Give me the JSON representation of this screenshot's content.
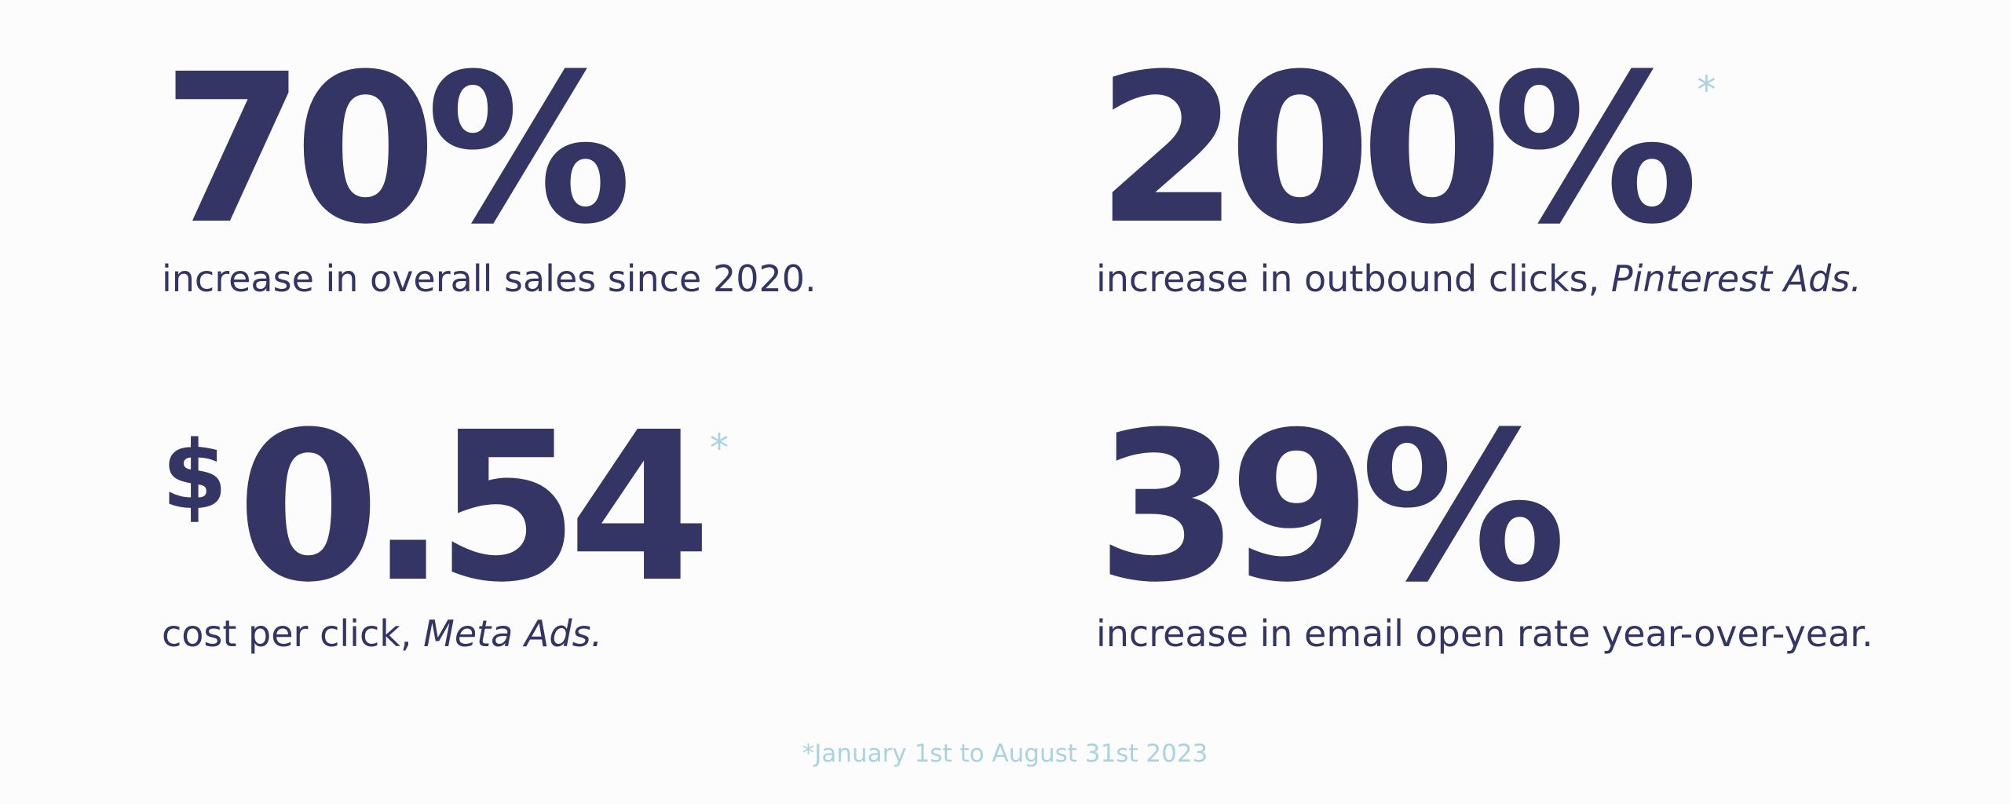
{
  "stats": [
    {
      "number": "70%",
      "description": "increase in overall sales since 2020."
    },
    {
      "number": "200%",
      "marker": "*",
      "description": "increase in outbound clicks, ",
      "description_italic": "Pinterest Ads."
    },
    {
      "prefix": "$",
      "number": "0.54",
      "marker": "*",
      "description": "cost per click, ",
      "description_italic": "Meta Ads."
    },
    {
      "number": "39%",
      "description": "increase in email open rate year-over-year."
    }
  ],
  "footnote": "*January 1st to August 31st 2023"
}
